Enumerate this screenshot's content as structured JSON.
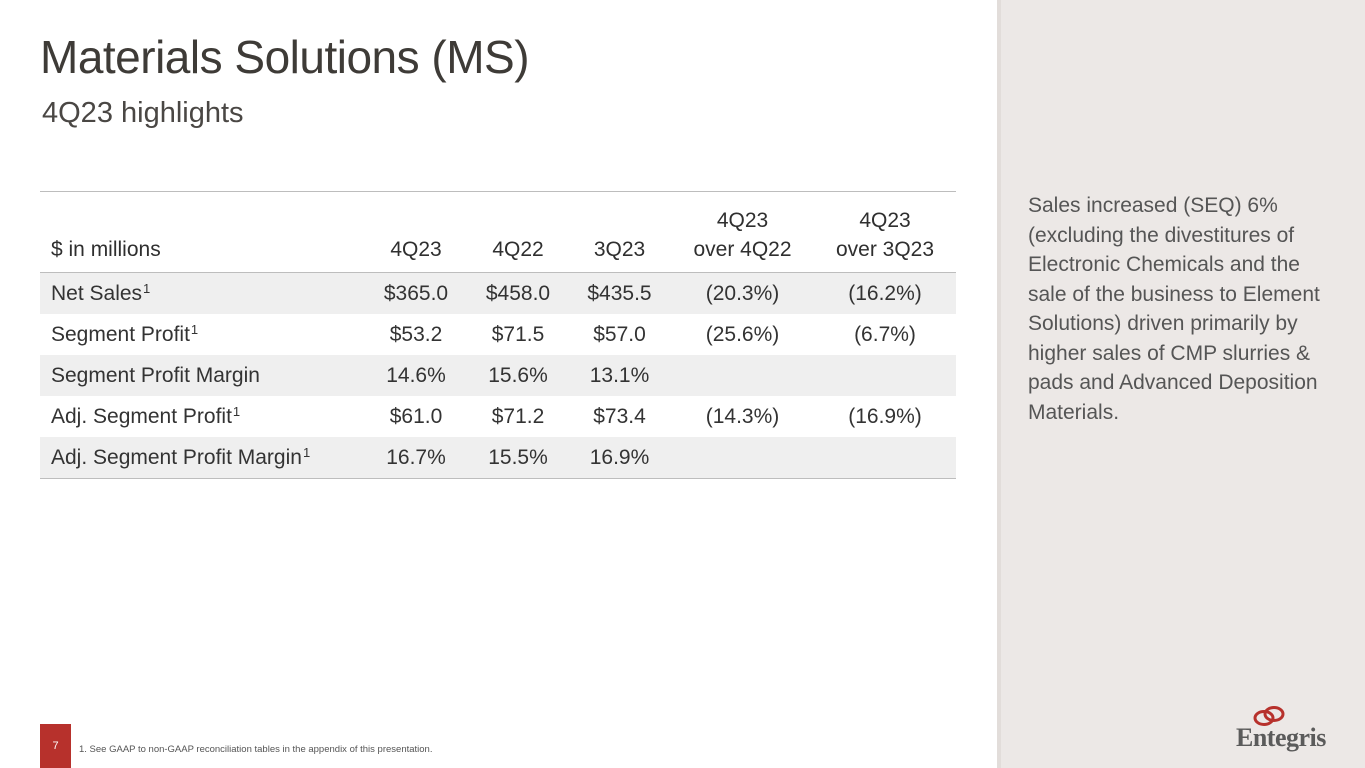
{
  "slide": {
    "title": "Materials Solutions (MS)",
    "subtitle": "4Q23 highlights",
    "page_number": "7",
    "footnote": "1. See GAAP to non-GAAP reconciliation tables in the appendix of this presentation."
  },
  "table": {
    "headers": [
      {
        "line1": "",
        "line2": "$ in millions"
      },
      {
        "line1": "",
        "line2": "4Q23"
      },
      {
        "line1": "",
        "line2": "4Q22"
      },
      {
        "line1": "",
        "line2": "3Q23"
      },
      {
        "line1": "4Q23",
        "line2": "over 4Q22"
      },
      {
        "line1": "4Q23",
        "line2": "over 3Q23"
      }
    ],
    "rows": [
      {
        "label": "Net Sales",
        "note": "1",
        "cells": [
          "$365.0",
          "$458.0",
          "$435.5",
          "(20.3%)",
          "(16.2%)"
        ]
      },
      {
        "label": "Segment Profit",
        "note": "1",
        "cells": [
          "$53.2",
          "$71.5",
          "$57.0",
          "(25.6%)",
          "(6.7%)"
        ]
      },
      {
        "label": "Segment Profit Margin",
        "note": "",
        "cells": [
          "14.6%",
          "15.6%",
          "13.1%",
          "",
          ""
        ]
      },
      {
        "label": "Adj. Segment Profit",
        "note": "1",
        "cells": [
          "$61.0",
          "$71.2",
          "$73.4",
          "(14.3%)",
          "(16.9%)"
        ]
      },
      {
        "label": "Adj. Segment Profit Margin",
        "note": "1",
        "cells": [
          "16.7%",
          "15.5%",
          "16.9%",
          "",
          ""
        ]
      }
    ]
  },
  "commentary": "Sales increased (SEQ) 6% (excluding the divestitures of Electronic Chemicals and the sale of the business to Element Solutions) driven primarily by higher sales of CMP slurries & pads and Advanced Deposition Materials.",
  "brand": {
    "logo_text": "Entegris",
    "accent_color": "#b7312c",
    "panel_color": "#ece8e6"
  }
}
